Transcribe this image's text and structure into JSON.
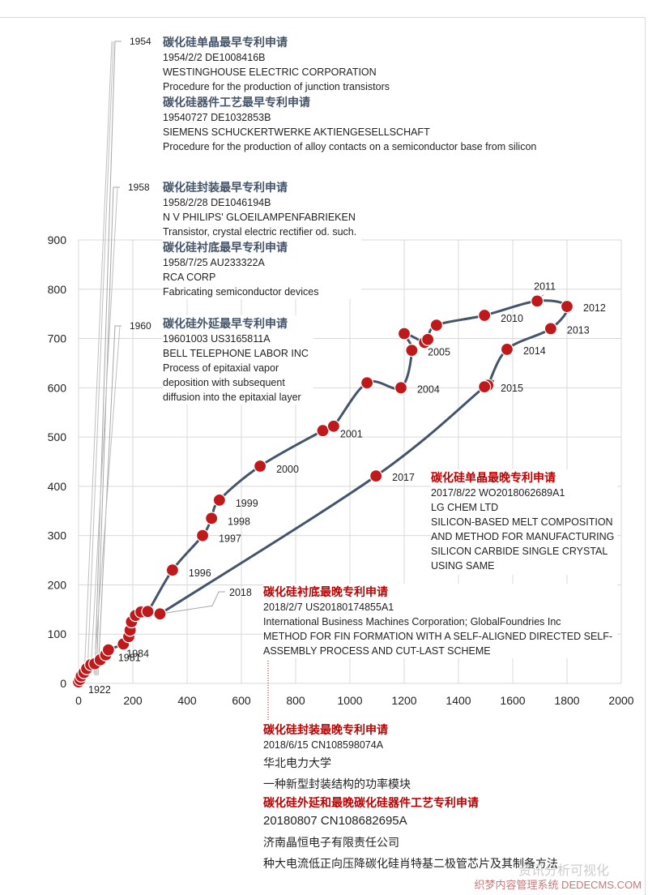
{
  "chart_data": {
    "type": "scatter",
    "title": "",
    "xlabel": "",
    "ylabel": "",
    "xlim": [
      0,
      2000
    ],
    "ylim": [
      0,
      900
    ],
    "xticks": [
      "0",
      "200",
      "400",
      "600",
      "800",
      "1000",
      "1200",
      "1400",
      "1600",
      "1800",
      "2000"
    ],
    "yticks": [
      "0",
      "100",
      "200",
      "300",
      "400",
      "500",
      "600",
      "700",
      "800",
      "900"
    ],
    "grid": true,
    "marker_color": "#c0191b",
    "line_color": "#44546a",
    "points": [
      {
        "x": 0,
        "y": 3,
        "label": "1922"
      },
      {
        "x": 5,
        "y": 8,
        "label": ""
      },
      {
        "x": 10,
        "y": 15,
        "label": ""
      },
      {
        "x": 20,
        "y": 22,
        "label": ""
      },
      {
        "x": 30,
        "y": 30,
        "label": ""
      },
      {
        "x": 45,
        "y": 38,
        "label": ""
      },
      {
        "x": 60,
        "y": 40,
        "label": ""
      },
      {
        "x": 80,
        "y": 48,
        "label": ""
      },
      {
        "x": 100,
        "y": 58,
        "label": ""
      },
      {
        "x": 110,
        "y": 68,
        "label": "1981"
      },
      {
        "x": 165,
        "y": 80,
        "label": "1984"
      },
      {
        "x": 185,
        "y": 95,
        "label": ""
      },
      {
        "x": 190,
        "y": 108,
        "label": ""
      },
      {
        "x": 195,
        "y": 125,
        "label": ""
      },
      {
        "x": 210,
        "y": 138,
        "label": ""
      },
      {
        "x": 230,
        "y": 145,
        "label": ""
      },
      {
        "x": 255,
        "y": 146,
        "label": ""
      },
      {
        "x": 346,
        "y": 230,
        "label": "1996"
      },
      {
        "x": 457,
        "y": 300,
        "label": "1997"
      },
      {
        "x": 490,
        "y": 335,
        "label": "1998"
      },
      {
        "x": 519,
        "y": 372,
        "label": "1999"
      },
      {
        "x": 669,
        "y": 441,
        "label": "2000"
      },
      {
        "x": 900,
        "y": 513,
        "label": ""
      },
      {
        "x": 940,
        "y": 522,
        "label": "2001"
      },
      {
        "x": 1063,
        "y": 610,
        "label": ""
      },
      {
        "x": 1188,
        "y": 600,
        "label": "2004"
      },
      {
        "x": 1228,
        "y": 676,
        "label": ""
      },
      {
        "x": 1200,
        "y": 710,
        "label": ""
      },
      {
        "x": 1275,
        "y": 692,
        "label": "2005"
      },
      {
        "x": 1287,
        "y": 698,
        "label": ""
      },
      {
        "x": 1319,
        "y": 727,
        "label": ""
      },
      {
        "x": 1496,
        "y": 747,
        "label": "2010"
      },
      {
        "x": 1690,
        "y": 776,
        "label": "2011"
      },
      {
        "x": 1800,
        "y": 765,
        "label": "2012"
      },
      {
        "x": 1740,
        "y": 720,
        "label": "2013"
      },
      {
        "x": 1579,
        "y": 678,
        "label": "2014"
      },
      {
        "x": 1508,
        "y": 605,
        "label": ""
      },
      {
        "x": 1496,
        "y": 602,
        "label": "2015"
      },
      {
        "x": 1096,
        "y": 421,
        "label": "2017"
      },
      {
        "x": 300,
        "y": 141,
        "label": "2018"
      }
    ],
    "leader_labels": [
      "1954",
      "1958",
      "1960"
    ],
    "annotations": [
      {
        "year": "1954",
        "entries": [
          {
            "title": "碳化硅单晶最早专利申请",
            "lines": [
              "1954/2/2  DE1008416B",
              "WESTINGHOUSE  ELECTRIC  CORPORATION",
              "Procedure for the production of junction transistors"
            ]
          },
          {
            "title": "碳化硅器件工艺最早专利申请",
            "lines": [
              "19540727  DE1032853B",
              "SIEMENS SCHUCKERTWERKE  AKTIENGESELLSCHAFT",
              "Procedure for the production of alloy contacts on a semiconductor base from silicon"
            ]
          }
        ]
      },
      {
        "year": "1958",
        "entries": [
          {
            "title": "碳化硅封装最早专利申请",
            "lines": [
              "1958/2/28  DE1046194B",
              "N V PHILIPS'  GLOEILAMPENFABRIEKEN",
              "Transistor,  crystal  electric rectifier od. such."
            ]
          },
          {
            "title": "碳化硅衬底最早专利申请",
            "lines": [
              "1958/7/25  AU233322A",
              "RCA CORP",
              "Fabricating semiconductor devices"
            ]
          }
        ]
      },
      {
        "year": "1960",
        "entries": [
          {
            "title": "碳化硅外延最早专利申请",
            "lines": [
              "19601003  US3165811A",
              "BELL TELEPHONE  LABOR INC",
              "Process of epitaxial vapor",
              "deposition with subsequent",
              "diffusion into the epitaxial layer"
            ]
          }
        ]
      },
      {
        "year": "2017",
        "entries": [
          {
            "title": "碳化硅单晶最晚专利申请",
            "lines": [
              "2017/8/22  WO2018062689A1",
              "LG CHEM LTD",
              "SILICON-BASED MELT  COMPOSITION",
              "AND METHOD  FOR MANUFACTURING",
              "SILICON CARBIDE SINGLE CRYSTAL",
              "USING SAME"
            ]
          }
        ]
      },
      {
        "year": "2018",
        "entries": [
          {
            "title": "碳化硅衬底最晚专利申请",
            "lines": [
              "2018/2/7  US20180174855A1",
              "International Business Machines Corporation; GlobalFoundries Inc",
              "METHOD  FOR FIN FORMATION  WITH A SELF-ALIGNED DIRECTED  SELF-",
              "ASSEMBLY PROCESS AND CUT-LAST SCHEME"
            ]
          }
        ]
      },
      {
        "year": "2018",
        "entries": [
          {
            "title": "碳化硅封装最晚专利申请",
            "lines": [
              "2018/6/15  CN108598074A"
            ]
          },
          {
            "title": "",
            "lines": [
              "华北电力大学",
              "一种新型封装结构的功率模块"
            ]
          },
          {
            "title": "碳化硅外延和最晚碳化硅器件工艺专利申请",
            "lines": [
              "20180807 CN108682695A",
              "济南晶恒电子有限责任公司",
              "种大电流低正向压降碳化硅肖特基二极管芯片及其制备方法"
            ]
          }
        ]
      }
    ]
  },
  "watermark": {
    "source": "资讯分析可视化",
    "site": "织梦内容管理系统 DEDECMS.COM"
  }
}
